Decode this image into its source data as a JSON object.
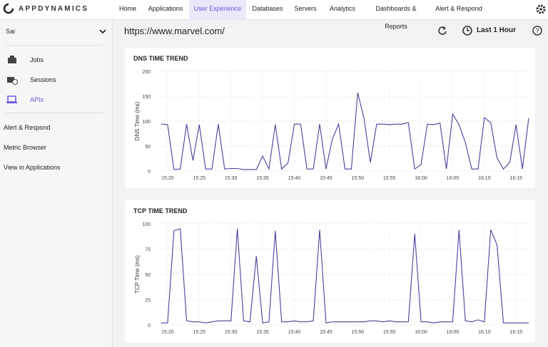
{
  "nav": {
    "logo": "APPDYNAMICS",
    "items": [
      "Home",
      "Applications",
      "User Experience",
      "Databases",
      "Servers",
      "Analytics",
      "Dashboards & Reports",
      "Alert & Respond"
    ]
  },
  "sidebar": {
    "user": "Sai",
    "items": [
      "Jobs",
      "Sessions",
      "APIs"
    ],
    "links": [
      "Alert & Respond",
      "Metric Browser",
      "View in Applications"
    ]
  },
  "header": {
    "url": "https://www.marvel.com/",
    "time_range": "Last 1 Hour"
  },
  "chart_data": [
    {
      "type": "line",
      "title": "DNS TIME TREND",
      "y_label": "DNS Time (ms)",
      "color": "#4b3f9e",
      "grid": true,
      "categories": [
        null,
        "15:20",
        null,
        null,
        null,
        null,
        "15:25",
        null,
        null,
        null,
        null,
        "15:30",
        null,
        null,
        null,
        null,
        "15:35",
        null,
        null,
        null,
        null,
        "15:40",
        null,
        null,
        null,
        null,
        "15:45",
        null,
        null,
        null,
        null,
        "15:50",
        null,
        null,
        null,
        null,
        "15:55",
        null,
        null,
        null,
        null,
        "16:00",
        null,
        null,
        null,
        null,
        "16:05",
        null,
        null,
        null,
        null,
        "16:10",
        null,
        null,
        null,
        null,
        "16:15",
        null,
        null
      ],
      "values": [
        94,
        93,
        3,
        4,
        94,
        21,
        93,
        4,
        4,
        94,
        4,
        5,
        5,
        3,
        3,
        3,
        30,
        4,
        93,
        4,
        16,
        94,
        94,
        4,
        4,
        94,
        4,
        64,
        94,
        4,
        4,
        157,
        106,
        17,
        94,
        94,
        93,
        94,
        94,
        97,
        4,
        13,
        94,
        93,
        96,
        4,
        114,
        93,
        57,
        4,
        4,
        107,
        97,
        26,
        4,
        17,
        93,
        4,
        106
      ],
      "ylim": [
        0,
        200
      ],
      "yticks": [
        0,
        50,
        100,
        150,
        200
      ]
    },
    {
      "type": "line",
      "title": "TCP TIME TREND",
      "y_label": "TCP Time (ms)",
      "color": "#4b3f9e",
      "grid": true,
      "categories": [
        null,
        "15:20",
        null,
        null,
        null,
        null,
        "15:25",
        null,
        null,
        null,
        null,
        "15:30",
        null,
        null,
        null,
        null,
        "15:35",
        null,
        null,
        null,
        null,
        "15:40",
        null,
        null,
        null,
        null,
        "15:45",
        null,
        null,
        null,
        null,
        "15:50",
        null,
        null,
        null,
        null,
        "15:55",
        null,
        null,
        null,
        null,
        "16:00",
        null,
        null,
        null,
        null,
        "16:05",
        null,
        null,
        null,
        null,
        "16:10",
        null,
        null,
        null,
        null,
        "16:15",
        null,
        null
      ],
      "values": [
        2,
        2,
        93,
        95,
        4,
        3,
        3,
        2,
        3,
        4,
        4,
        4,
        95,
        4,
        3,
        68,
        2,
        3,
        93,
        3,
        3,
        4,
        3,
        3,
        4,
        94,
        2,
        3,
        3,
        3,
        3,
        3,
        3,
        4,
        4,
        3,
        4,
        3,
        3,
        3,
        90,
        3,
        3,
        2,
        3,
        3,
        3,
        94,
        4,
        3,
        5,
        3,
        94,
        79,
        2,
        2,
        2,
        2,
        2
      ],
      "ylim": [
        0,
        100
      ],
      "yticks": [
        0,
        25,
        50,
        75,
        100
      ]
    }
  ]
}
